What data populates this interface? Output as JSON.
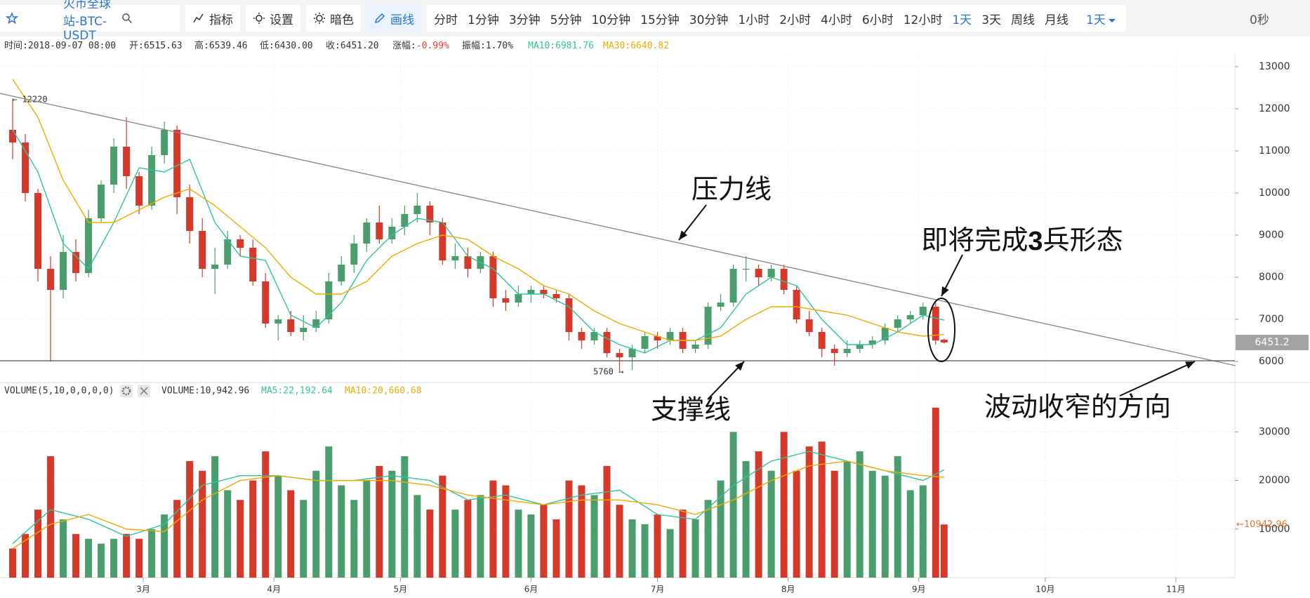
{
  "toolbar": {
    "symbol": "火币全球站-BTC-USDT",
    "tools": [
      "指标",
      "设置",
      "暗色",
      "画线"
    ],
    "highlight_tool": "画线",
    "intervals": [
      "分时",
      "1分钟",
      "3分钟",
      "5分钟",
      "10分钟",
      "15分钟",
      "30分钟",
      "1小时",
      "2小时",
      "4小时",
      "6小时",
      "12小时",
      "1天",
      "3天",
      "周线",
      "月线"
    ],
    "active_interval": "1天",
    "dropdown": "1天",
    "timer": "0秒"
  },
  "info": [
    {
      "label": "时间:",
      "value": "2018-09-07 08:00"
    },
    {
      "label": "开:",
      "value": "6515.63"
    },
    {
      "label": "高:",
      "value": "6539.46"
    },
    {
      "label": "低:",
      "value": "6430.00"
    },
    {
      "label": "收:",
      "value": "6451.20"
    },
    {
      "label": "涨幅:",
      "value": "-0.99%",
      "color": "#e0403a"
    },
    {
      "label": "振幅:",
      "value": "1.70%"
    },
    {
      "label": "MA10:",
      "value": "6981.76",
      "color": "#2ec4a0"
    },
    {
      "label": "MA30:",
      "value": "6640.82",
      "color": "#f2a900"
    }
  ],
  "volume_header": [
    {
      "text": "VOLUME(5,10,0,0,0,0)",
      "color": "#333333"
    },
    {
      "text": "VOLUME:10,942.96",
      "color": "#333333"
    },
    {
      "text": "MA5:22,192.64",
      "color": "#2ec4a0"
    },
    {
      "text": "MA10:20,660.68",
      "color": "#f2a900"
    }
  ],
  "annotations": [
    "压力线",
    "支撑线",
    "波动收窄的方向"
  ],
  "pattern_note": [
    "即将完成",
    "3",
    "兵形态"
  ],
  "chart_data": [
    {
      "type": "candlestick",
      "up_color": "#4a9e6e",
      "down_color": "#d6382a",
      "grid": true,
      "x": [
        28,
        31,
        34,
        37,
        40,
        43,
        46,
        49,
        52,
        55,
        58,
        61,
        64,
        67,
        70,
        73,
        76,
        79,
        82,
        85,
        88,
        91,
        94,
        97,
        100,
        103,
        106,
        109,
        112,
        115,
        118,
        121,
        124,
        127,
        130,
        133,
        136,
        139,
        142,
        145,
        148,
        151,
        154,
        157,
        160,
        163,
        166,
        169,
        172,
        175,
        178,
        181,
        184,
        187,
        190,
        193,
        196,
        199,
        202,
        205,
        208,
        211,
        214,
        217,
        220,
        223,
        226,
        229,
        232,
        235,
        238,
        241,
        244,
        247,
        249
      ],
      "open": [
        11500,
        11200,
        10000,
        8200,
        7700,
        8600,
        8100,
        9400,
        10200,
        11100,
        10400,
        9700,
        10900,
        11500,
        9900,
        9100,
        8200,
        8300,
        8900,
        8700,
        7900,
        6900,
        7000,
        6700,
        6800,
        7000,
        7900,
        8300,
        8800,
        9300,
        8900,
        9200,
        9500,
        9700,
        9300,
        8400,
        8500,
        8200,
        8500,
        7500,
        7400,
        7600,
        7700,
        7600,
        7500,
        6700,
        6500,
        6700,
        6200,
        6100,
        6300,
        6600,
        6500,
        6700,
        6300,
        6400,
        7300,
        7400,
        8200,
        8200,
        8000,
        8200,
        7700,
        7000,
        6700,
        6300,
        6200,
        6300,
        6400,
        6500,
        6800,
        7000,
        7100,
        7300,
        6515.63
      ],
      "high": [
        12220,
        11400,
        10100,
        8500,
        9000,
        8900,
        9600,
        10300,
        11300,
        11800,
        10500,
        11100,
        11700,
        11600,
        10200,
        9400,
        8700,
        9100,
        9000,
        8900,
        8100,
        7100,
        7200,
        7100,
        7200,
        8100,
        8500,
        9000,
        9400,
        9700,
        9400,
        9700,
        10000,
        9800,
        9400,
        8800,
        8700,
        8600,
        8600,
        7700,
        7800,
        7800,
        7800,
        7700,
        7600,
        6800,
        6800,
        6800,
        6300,
        6400,
        6700,
        6700,
        6800,
        6800,
        6500,
        7400,
        7600,
        8300,
        8500,
        8300,
        8300,
        8300,
        7800,
        7200,
        6800,
        6400,
        6500,
        6500,
        6600,
        6900,
        7100,
        7200,
        7400,
        7400,
        6539.46
      ],
      "low": [
        10800,
        9800,
        7900,
        6000,
        7500,
        7900,
        8000,
        9300,
        10000,
        10100,
        9500,
        9600,
        10700,
        9500,
        8800,
        8000,
        7600,
        8200,
        8500,
        7800,
        6800,
        6500,
        6600,
        6500,
        6700,
        6900,
        7800,
        8100,
        8600,
        8800,
        8800,
        9000,
        9300,
        9000,
        8300,
        8200,
        8000,
        8100,
        7300,
        7200,
        7300,
        7400,
        7500,
        7400,
        6500,
        6300,
        6400,
        6100,
        5760,
        5800,
        6200,
        6300,
        6400,
        6200,
        6200,
        6300,
        7200,
        7300,
        7900,
        7800,
        7900,
        7600,
        6900,
        6600,
        6100,
        5900,
        6100,
        6200,
        6300,
        6400,
        6700,
        6900,
        7000,
        6400,
        6430
      ],
      "close": [
        11200,
        10000,
        8200,
        7700,
        8600,
        8100,
        9400,
        10200,
        11100,
        10400,
        9700,
        10900,
        11500,
        9900,
        9100,
        8200,
        8300,
        8900,
        8700,
        7900,
        6900,
        7000,
        6700,
        6800,
        7000,
        7900,
        8300,
        8800,
        9300,
        8900,
        9200,
        9500,
        9700,
        9300,
        8400,
        8500,
        8200,
        8500,
        7500,
        7400,
        7600,
        7700,
        7600,
        7500,
        6700,
        6500,
        6700,
        6200,
        6100,
        6300,
        6600,
        6500,
        6700,
        6300,
        6400,
        7300,
        7400,
        8200,
        8200,
        8000,
        8200,
        7700,
        7000,
        6700,
        6300,
        6200,
        6300,
        6400,
        6500,
        6800,
        7000,
        7100,
        7300,
        6500,
        6451.2
      ],
      "ma": [
        {
          "color": "#2ec4a0",
          "x": [
            28,
            34,
            40,
            46,
            52,
            58,
            64,
            70,
            76,
            82,
            88,
            94,
            100,
            106,
            112,
            118,
            124,
            130,
            136,
            142,
            148,
            154,
            160,
            166,
            172,
            178,
            184,
            190,
            196,
            202,
            208,
            214,
            220,
            226,
            232,
            238,
            244,
            249
          ],
          "values": [
            11500,
            10500,
            8800,
            8200,
            9300,
            10600,
            10500,
            10800,
            9300,
            8500,
            8400,
            7100,
            6800,
            7400,
            8400,
            9000,
            9400,
            9300,
            8500,
            8200,
            7600,
            7600,
            7300,
            6700,
            6400,
            6200,
            6500,
            6500,
            6800,
            7600,
            8000,
            7800,
            7000,
            6400,
            6400,
            6700,
            7100,
            6981.76
          ]
        },
        {
          "color": "#f2a900",
          "x": [
            28,
            34,
            40,
            46,
            52,
            58,
            64,
            70,
            76,
            82,
            88,
            94,
            100,
            106,
            112,
            118,
            124,
            130,
            136,
            142,
            148,
            154,
            160,
            166,
            172,
            178,
            184,
            190,
            196,
            202,
            208,
            214,
            220,
            226,
            232,
            238,
            244,
            249
          ],
          "values": [
            12700,
            11800,
            10300,
            9300,
            9300,
            9600,
            9900,
            10100,
            9700,
            9200,
            8700,
            8000,
            7600,
            7600,
            7900,
            8500,
            8800,
            9000,
            8900,
            8500,
            8200,
            7800,
            7600,
            7200,
            6900,
            6700,
            6500,
            6500,
            6600,
            7000,
            7300,
            7300,
            7200,
            7100,
            6900,
            6700,
            6600,
            6640.82
          ]
        }
      ],
      "xlim": [
        25,
        318
      ],
      "xticks": [
        {
          "value": 59,
          "label": "3月"
        },
        {
          "value": 90,
          "label": "4月"
        },
        {
          "value": 120,
          "label": "5月"
        },
        {
          "value": 151,
          "label": "6月"
        },
        {
          "value": 181,
          "label": "7月"
        },
        {
          "value": 212,
          "label": "8月"
        },
        {
          "value": 243,
          "label": "9月"
        },
        {
          "value": 273,
          "label": "10月"
        },
        {
          "value": 304,
          "label": "11月"
        }
      ],
      "ylim": [
        5500,
        13300
      ],
      "yticks": [
        6000,
        7000,
        8000,
        9000,
        10000,
        11000,
        12000,
        13000
      ],
      "price_tag": "6451.2",
      "high_label": "← 12220",
      "low_label": "5760 →"
    },
    {
      "type": "bar",
      "grid": true,
      "values": [
        6000,
        9000,
        14000,
        25000,
        12000,
        9000,
        8000,
        7000,
        8000,
        9000,
        8000,
        10000,
        13000,
        16000,
        24000,
        22000,
        25000,
        18000,
        16000,
        20000,
        26000,
        21000,
        18000,
        16000,
        22000,
        27000,
        19000,
        16000,
        20000,
        23000,
        22000,
        25000,
        17000,
        14000,
        21000,
        14000,
        16000,
        17000,
        20000,
        19000,
        14000,
        13000,
        15000,
        12000,
        20000,
        19000,
        17000,
        23000,
        15000,
        12000,
        11000,
        13000,
        10000,
        14000,
        12000,
        16000,
        20000,
        30000,
        24000,
        26000,
        22000,
        30000,
        22000,
        27000,
        28000,
        22000,
        24000,
        26000,
        22000,
        21000,
        25000,
        18000,
        19000,
        35000,
        10942.96
      ],
      "series": [
        {
          "color": "#2ec4a0",
          "x": [
            28,
            37,
            46,
            55,
            64,
            73,
            82,
            91,
            100,
            109,
            118,
            127,
            136,
            145,
            154,
            163,
            172,
            181,
            190,
            199,
            208,
            217,
            226,
            235,
            244,
            249
          ],
          "values": [
            7000,
            14000,
            12000,
            8500,
            11000,
            19000,
            21000,
            21000,
            20000,
            20000,
            21000,
            20000,
            16000,
            17000,
            15000,
            17000,
            18000,
            13000,
            12000,
            19000,
            24000,
            26000,
            24000,
            22000,
            20000,
            22192.64
          ]
        },
        {
          "color": "#f2a900",
          "x": [
            28,
            37,
            46,
            55,
            64,
            73,
            82,
            91,
            100,
            109,
            118,
            127,
            136,
            145,
            154,
            163,
            172,
            181,
            190,
            199,
            208,
            217,
            226,
            235,
            244,
            249
          ],
          "values": [
            6000,
            11000,
            13000,
            10000,
            9500,
            16000,
            20000,
            21000,
            20000,
            20000,
            20000,
            19000,
            17000,
            16000,
            15000,
            16000,
            16000,
            15000,
            13000,
            16000,
            20000,
            23000,
            24000,
            22000,
            21000,
            20660.68
          ]
        }
      ],
      "ylim": [
        0,
        36700
      ],
      "yticks": [
        10000,
        20000,
        30000
      ],
      "last_label": "←10942.96",
      "last_label_color": "#e8772e"
    }
  ]
}
